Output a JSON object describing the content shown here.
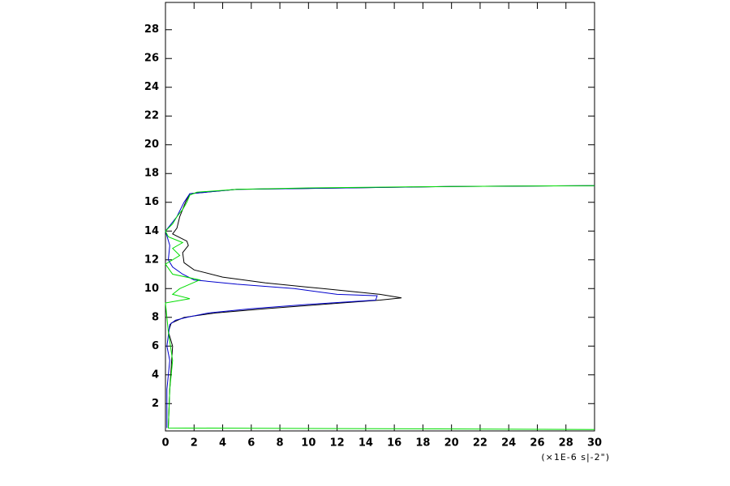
{
  "chart_data": {
    "type": "line",
    "xlabel": "(×1E-6 s|-2\")",
    "xlim": [
      0,
      30
    ],
    "xticks": [
      0,
      2,
      4,
      6,
      8,
      10,
      12,
      14,
      16,
      18,
      20,
      22,
      24,
      26,
      28,
      30
    ],
    "ylim": [
      0.1,
      29.9
    ],
    "yticks": [
      2,
      4,
      6,
      8,
      10,
      12,
      14,
      16,
      18,
      20,
      22,
      24,
      26,
      28
    ],
    "series": [
      {
        "color": "#000000",
        "y": [
          0.3,
          3,
          6,
          7,
          7.6,
          8.0,
          8.3,
          8.6,
          8.9,
          9.2,
          9.35,
          9.6,
          10.0,
          10.4,
          10.8,
          11.3,
          11.8,
          12.5,
          13.0,
          13.3,
          13.8,
          14.2,
          15,
          16,
          16.6,
          16.9,
          17.1,
          17.15
        ],
        "values": [
          0.2,
          0.3,
          0.5,
          0.2,
          0.4,
          1.3,
          3.5,
          7,
          11,
          15,
          16.5,
          15,
          11,
          7,
          4,
          2,
          1.3,
          1.2,
          1.6,
          1.5,
          0.5,
          0.8,
          1,
          1.4,
          1.7,
          5,
          20,
          30
        ]
      },
      {
        "color": "#0000cc",
        "y": [
          0.3,
          3,
          5,
          6,
          7.5,
          7.8,
          8.0,
          8.3,
          8.6,
          8.9,
          9.2,
          9.5,
          9.6,
          10.0,
          10.3,
          10.6,
          11.0,
          11.5,
          12,
          13,
          14,
          15,
          16.0,
          16.6,
          16.9,
          17.1,
          17.15
        ],
        "values": [
          0.1,
          0.1,
          0.3,
          0.1,
          0.3,
          0.7,
          1.5,
          3,
          6,
          10,
          14.7,
          14.8,
          12,
          9,
          5,
          2,
          1.2,
          0.5,
          0.2,
          0.3,
          0,
          0.8,
          1.3,
          1.7,
          5,
          20,
          30
        ]
      },
      {
        "color": "#00dd00",
        "y": [
          0.2,
          0.3,
          3,
          5,
          7,
          9.0,
          9.3,
          9.6,
          10.0,
          10.6,
          11.0,
          11.7,
          12.3,
          12.8,
          13.2,
          13.6,
          14.0,
          14.5,
          15.0,
          15.5,
          16.0,
          16.5,
          16.7,
          16.9,
          17.0,
          17.1,
          17.15
        ],
        "values": [
          30,
          0.2,
          0.3,
          0.5,
          0.2,
          0,
          1.7,
          0.5,
          1,
          2.4,
          0.5,
          0,
          1,
          0.5,
          1.2,
          0.2,
          0,
          0.5,
          0.8,
          1.2,
          1.5,
          1.7,
          2.2,
          5,
          10,
          20,
          30
        ]
      }
    ]
  }
}
